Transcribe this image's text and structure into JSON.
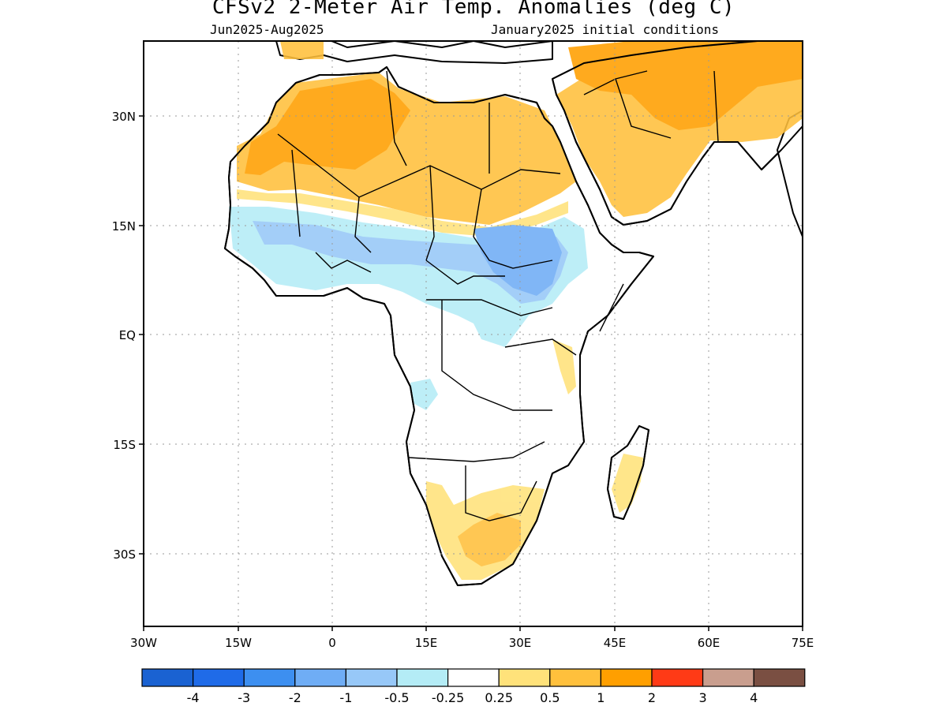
{
  "title": "CFSv2 2-Meter Air Temp. Anomalies (deg C)",
  "subtitle_left": "Jun2025-Aug2025",
  "subtitle_right": "January2025 initial conditions",
  "map": {
    "projection": "lat-lon",
    "lon_range": [
      -30,
      75
    ],
    "lat_range": [
      -39,
      39
    ],
    "grid": true,
    "lat_ticks": [
      "30N",
      "15N",
      "EQ",
      "15S",
      "30S"
    ],
    "lat_tick_values": [
      30,
      15,
      0,
      -15,
      -30
    ],
    "lon_ticks": [
      "30W",
      "15W",
      "0",
      "15E",
      "30E",
      "45E",
      "60E",
      "75E"
    ],
    "lon_tick_values": [
      -30,
      -15,
      0,
      15,
      30,
      45,
      60,
      75
    ]
  },
  "colorbar": {
    "colors": [
      "#1a62d2",
      "#1f6be8",
      "#3d8ff0",
      "#6fadf5",
      "#97c8f8",
      "#b4ecf6",
      "#ffffff",
      "#ffe27a",
      "#ffc03c",
      "#ff9f00",
      "#ff3a16",
      "#c99e8e",
      "#7a4f42"
    ],
    "labels": [
      "-4",
      "-3",
      "-2",
      "-1",
      "-0.5",
      "-0.25",
      "0.25",
      "0.5",
      "1",
      "2",
      "3",
      "4"
    ]
  },
  "colors": {
    "warm_1": "#ffe27a",
    "warm_2": "#ffc03c",
    "warm_3": "#ff9f00",
    "cool_1": "#b4ecf6",
    "cool_2": "#97c8f8",
    "cool_3": "#6fadf5"
  }
}
